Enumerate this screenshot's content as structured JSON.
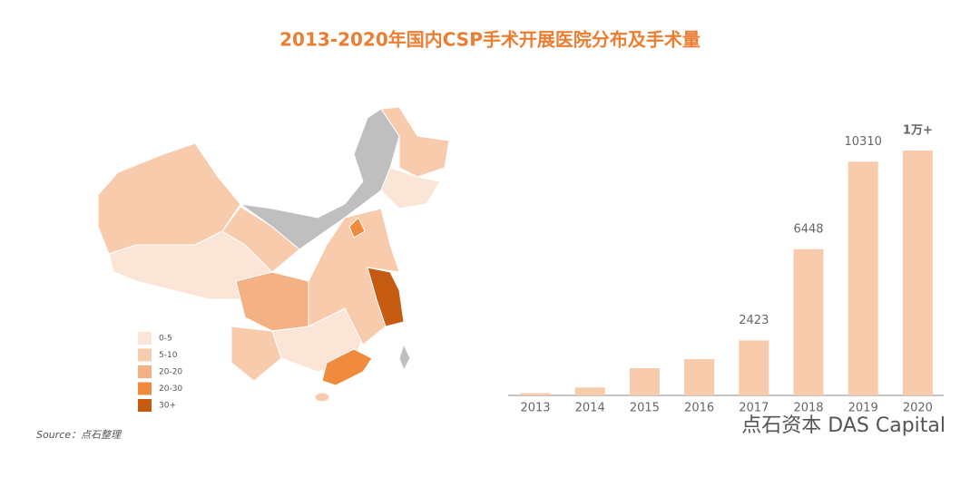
{
  "title": "2013-2020年国内CSP手术开展医院分布及手术量",
  "source": "Source：点石整理",
  "watermark": "点石资本 DAS Capital",
  "chart_data": [
    {
      "type": "map",
      "legend": [
        {
          "label": "0-5",
          "color": "#fbe5d6"
        },
        {
          "label": "5-10",
          "color": "#f8cbad"
        },
        {
          "label": "20-20",
          "color": "#f4b183"
        },
        {
          "label": "20-30",
          "color": "#f08a3c"
        },
        {
          "label": "30+",
          "color": "#c55a11"
        }
      ]
    },
    {
      "type": "bar",
      "color": "#f8cbad",
      "categories": [
        "2013",
        "2014",
        "2015",
        "2016",
        "2017",
        "2018",
        "2019",
        "2020"
      ],
      "values": [
        100,
        350,
        1200,
        1600,
        2423,
        6448,
        10310,
        10800
      ],
      "value_labels": [
        null,
        null,
        null,
        null,
        "2423",
        "6448",
        "10310",
        "1万+"
      ]
    }
  ]
}
